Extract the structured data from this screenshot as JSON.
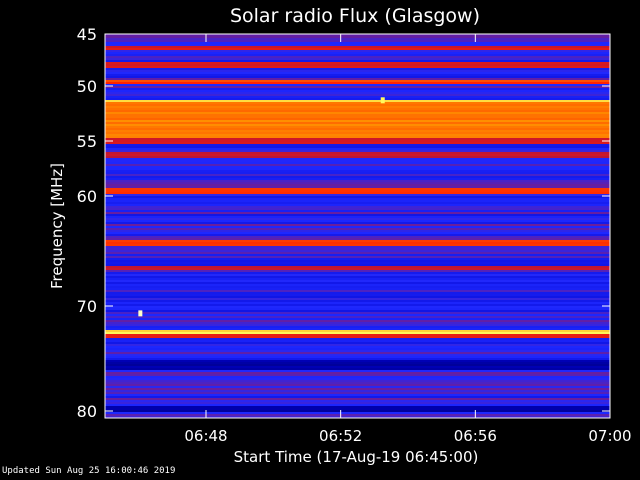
{
  "chart_data": {
    "type": "heatmap",
    "title": "Solar radio Flux (Glasgow)",
    "xlabel": "Start Time (17-Aug-19 06:45:00)",
    "ylabel": "Frequency [MHz]",
    "x_ticks": [
      "06:48",
      "06:52",
      "06:56",
      "07:00"
    ],
    "x_tick_minutes": [
      3,
      7,
      11,
      15
    ],
    "xlim_minutes": [
      0,
      15
    ],
    "y_ticks": [
      45,
      50,
      55,
      60,
      70,
      80
    ],
    "ylim": [
      45,
      80
    ],
    "colormap": [
      "#000030",
      "#0000c8",
      "#1e28ff",
      "#b4143c",
      "#ff1e00",
      "#ff9600",
      "#ffff64",
      "#ffffff"
    ],
    "bands": [
      {
        "f0": 45.0,
        "f1": 45.6,
        "level": 0.35
      },
      {
        "f0": 46.0,
        "f1": 46.4,
        "level": 0.5
      },
      {
        "f0": 47.6,
        "f1": 48.2,
        "level": 0.5
      },
      {
        "f0": 49.3,
        "f1": 49.8,
        "level": 0.6
      },
      {
        "f0": 51.1,
        "f1": 51.4,
        "level": 0.78
      },
      {
        "f0": 51.4,
        "f1": 54.6,
        "level": 0.68
      },
      {
        "f0": 54.6,
        "f1": 55.1,
        "level": 0.5
      },
      {
        "f0": 56.0,
        "f1": 56.5,
        "level": 0.45
      },
      {
        "f0": 59.2,
        "f1": 59.7,
        "level": 0.58
      },
      {
        "f0": 64.0,
        "f1": 64.4,
        "level": 0.62
      },
      {
        "f0": 66.2,
        "f1": 66.6,
        "level": 0.45
      },
      {
        "f0": 72.1,
        "f1": 72.5,
        "level": 0.82
      },
      {
        "f0": 72.5,
        "f1": 72.9,
        "level": 0.55
      },
      {
        "f0": 75.0,
        "f1": 76.0,
        "level": 0.1
      },
      {
        "f0": 79.5,
        "f1": 80.0,
        "level": 0.1
      }
    ],
    "spots": [
      {
        "t_min": 8.25,
        "f": 51.3,
        "level": 0.85
      },
      {
        "t_min": 1.05,
        "f": 70.7,
        "level": 0.95
      }
    ]
  },
  "footer": {
    "updated": "Updated Sun Aug 25 16:00:46 2019"
  }
}
